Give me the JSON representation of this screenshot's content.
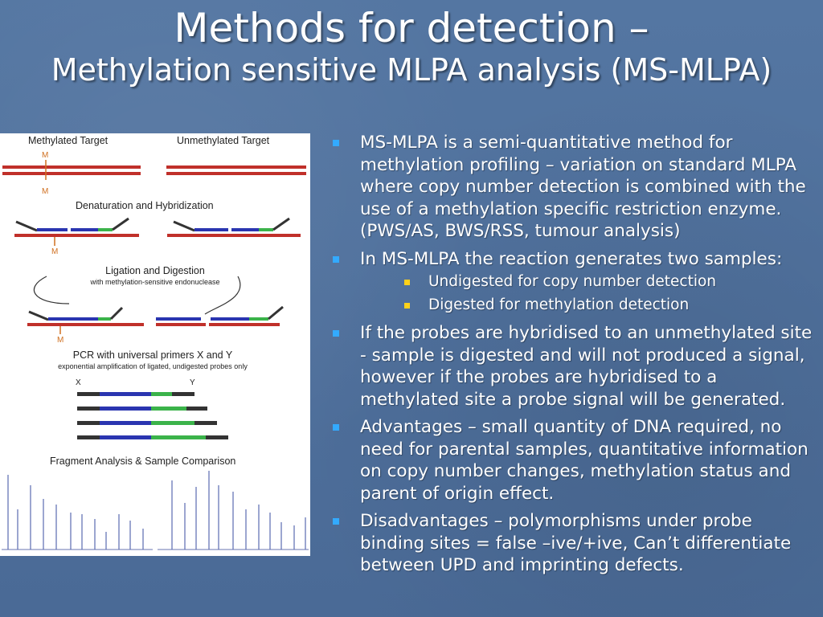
{
  "slide": {
    "title_line1": "Methods for detection –",
    "title_line2": "Methylation sensitive MLPA analysis (MS-MLPA)"
  },
  "figure": {
    "label_methylated_target": "Methylated Target",
    "label_unmethylated_target": "Unmethylated Target",
    "mark_m": "M",
    "label_denaturation": "Denaturation and Hybridization",
    "label_ligation": "Ligation and Digestion",
    "label_ligation_sub": "with methylation-sensitive endonuclease",
    "label_pcr": "PCR with universal primers X and Y",
    "label_pcr_sub": "exponential amplification of ligated, undigested probes only",
    "label_x": "X",
    "label_y": "Y",
    "label_fragment": "Fragment Analysis & Sample Comparison"
  },
  "bullets": [
    {
      "text": "MS-MLPA is a semi-quantitative method for methylation profiling – variation on standard MLPA where copy number detection is combined with the use of a methylation specific restriction enzyme. (PWS/AS, BWS/RSS, tumour analysis)"
    },
    {
      "text": "In MS-MLPA the reaction generates two samples:",
      "sub": [
        "Undigested for copy number detection",
        "Digested for methylation detection"
      ]
    },
    {
      "text": "If the probes are hybridised to an unmethylated site - sample is digested and will not produced a signal, however if the probes are hybridised to a methylated site a probe signal will be generated."
    },
    {
      "text": "Advantages – small quantity of DNA required, no need for parental samples, quantitative information on copy number changes, methylation status and parent of origin effect."
    },
    {
      "text": "Disadvantages – polymorphisms under probe binding sites = false –ive/+ive, Can’t differentiate between UPD and imprinting defects."
    }
  ],
  "colors": {
    "background": "#4f6f9a",
    "bullet_level1": "#33aaff",
    "bullet_level2": "#ffd11a",
    "dna_red": "#c0302a",
    "probe_blue": "#2a35b0",
    "probe_green": "#3bb34a"
  }
}
